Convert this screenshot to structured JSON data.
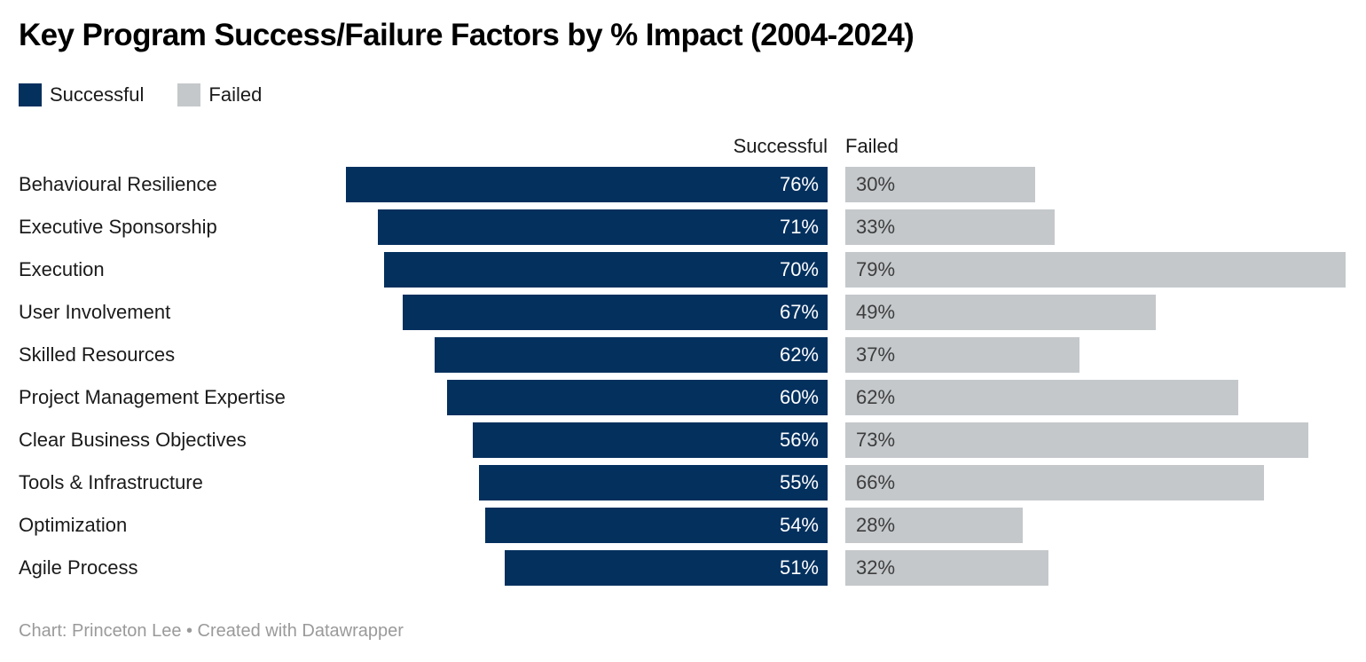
{
  "title": "Key Program Success/Failure Factors by % Impact (2004-2024)",
  "footer": {
    "text": "Chart: Princeton Lee • Created with Datawrapper"
  },
  "colors": {
    "successful_bar": "#04305e",
    "failed_bar": "#c4c8cb",
    "successful_value_text": "#ffffff",
    "failed_value_text": "#3d3d3d",
    "label_text": "#1a1a1a",
    "footer_text": "#9a9a9a",
    "background": "#ffffff"
  },
  "chart_data": {
    "type": "bar",
    "subtype": "horizontal-paired-bars",
    "title": "Key Program Success/Failure Factors by % Impact (2004-2024)",
    "categories": [
      "Behavioural Resilience",
      "Executive Sponsorship",
      "Execution",
      "User Involvement",
      "Skilled Resources",
      "Project Management Expertise",
      "Clear Business Objectives",
      "Tools & Infrastructure",
      "Optimization",
      "Agile Process"
    ],
    "series": [
      {
        "name": "Successful",
        "color": "#04305e",
        "values": [
          76,
          71,
          70,
          67,
          62,
          60,
          56,
          55,
          54,
          51
        ]
      },
      {
        "name": "Failed",
        "color": "#c4c8cb",
        "values": [
          30,
          33,
          79,
          49,
          37,
          62,
          73,
          66,
          28,
          32
        ]
      }
    ],
    "value_suffix": "%",
    "xlim": [
      0,
      80
    ],
    "grid": false,
    "legend_position": "top-left",
    "value_labels": "inside-bars",
    "source": "Chart: Princeton Lee • Created with Datawrapper"
  }
}
